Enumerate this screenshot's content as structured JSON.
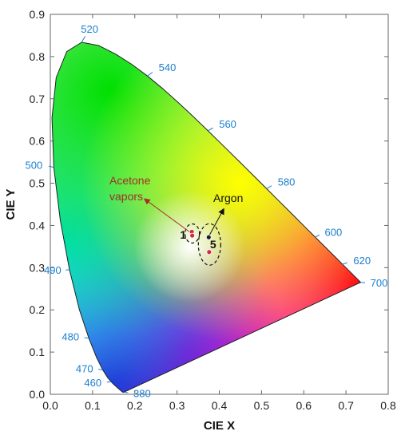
{
  "chart_data": {
    "type": "scatter",
    "title": "",
    "xlabel": "CIE X",
    "ylabel": "CIE Y",
    "xlim": [
      0.0,
      0.8
    ],
    "ylim": [
      0.0,
      0.9
    ],
    "x_ticks": [
      "0.0",
      "0.1",
      "0.2",
      "0.3",
      "0.4",
      "0.5",
      "0.6",
      "0.7",
      "0.8"
    ],
    "y_ticks": [
      "0.0",
      "0.1",
      "0.2",
      "0.3",
      "0.4",
      "0.5",
      "0.6",
      "0.7",
      "0.8",
      "0.9"
    ],
    "grid": false,
    "spectral_locus_wavelength_labels": [
      {
        "label": "380",
        "x": 0.174,
        "y": 0.005
      },
      {
        "label": "460",
        "x": 0.144,
        "y": 0.03
      },
      {
        "label": "470",
        "x": 0.124,
        "y": 0.058
      },
      {
        "label": "480",
        "x": 0.091,
        "y": 0.133
      },
      {
        "label": "490",
        "x": 0.045,
        "y": 0.295
      },
      {
        "label": "500",
        "x": 0.008,
        "y": 0.538
      },
      {
        "label": "520",
        "x": 0.074,
        "y": 0.834
      },
      {
        "label": "540",
        "x": 0.23,
        "y": 0.754
      },
      {
        "label": "560",
        "x": 0.373,
        "y": 0.624
      },
      {
        "label": "580",
        "x": 0.512,
        "y": 0.487
      },
      {
        "label": "600",
        "x": 0.627,
        "y": 0.372
      },
      {
        "label": "620",
        "x": 0.691,
        "y": 0.308
      },
      {
        "label": "700",
        "x": 0.735,
        "y": 0.265
      }
    ],
    "series": [
      {
        "points": [
          {
            "x": 0.335,
            "y": 0.385
          },
          {
            "x": 0.336,
            "y": 0.376
          }
        ],
        "color": "#d42b45"
      },
      {
        "points": [
          {
            "x": 0.375,
            "y": 0.372
          }
        ],
        "color": "#1a1a2e"
      },
      {
        "points": [
          {
            "x": 0.376,
            "y": 0.337
          }
        ],
        "color": "#d42b45"
      }
    ],
    "group_labels": [
      {
        "label": "1",
        "x": 0.322,
        "y": 0.378
      },
      {
        "label": "5",
        "x": 0.393,
        "y": 0.355
      }
    ],
    "annotations": [
      {
        "text_lines": [
          "Acetone",
          "vapors"
        ],
        "color": "#a0302a"
      },
      {
        "text_lines": [
          "Argon"
        ],
        "color": "#111111"
      }
    ]
  }
}
